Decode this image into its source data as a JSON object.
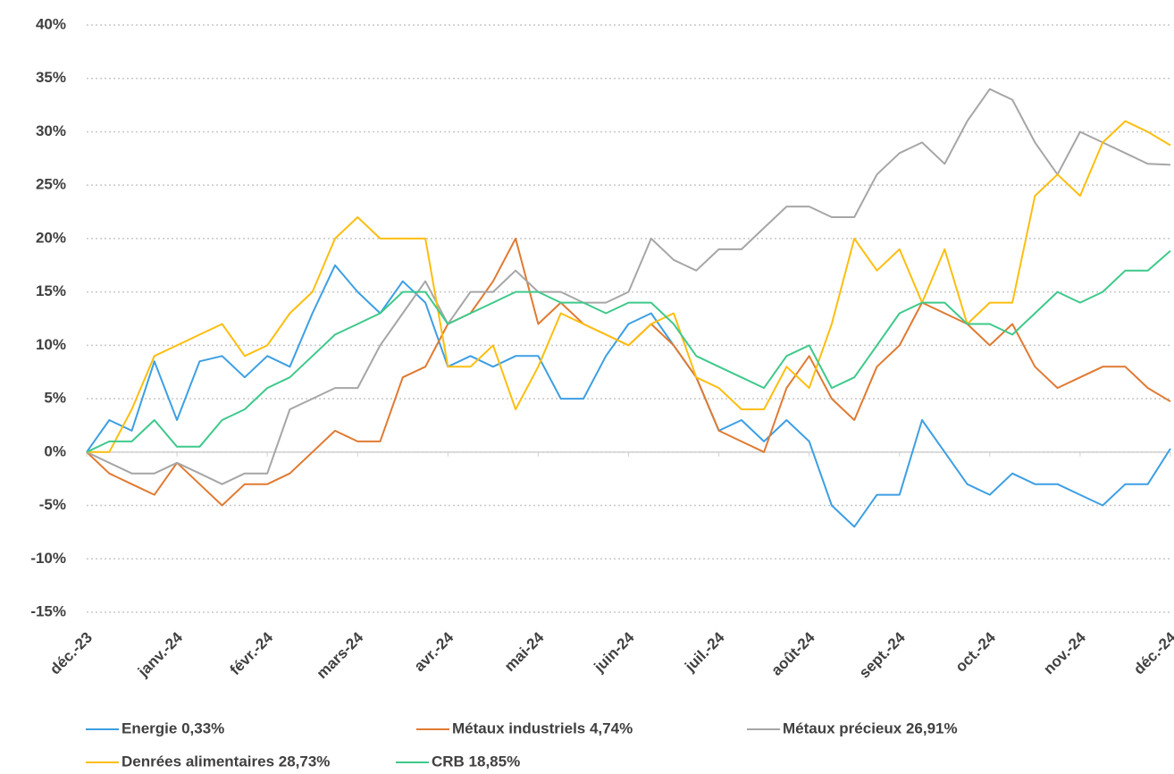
{
  "chart_data": {
    "type": "line",
    "categories": [
      "déc.-23",
      null,
      null,
      null,
      "janv.-24",
      null,
      null,
      null,
      "févr.-24",
      null,
      null,
      null,
      "mars-24",
      null,
      null,
      null,
      "avr.-24",
      null,
      null,
      null,
      "mai-24",
      null,
      null,
      null,
      "juin-24",
      null,
      null,
      null,
      "juil.-24",
      null,
      null,
      null,
      "août-24",
      null,
      null,
      null,
      "sept.-24",
      null,
      null,
      null,
      "oct.-24",
      null,
      null,
      null,
      "nov.-24",
      null,
      null,
      null,
      "déc.-24"
    ],
    "series": [
      {
        "name": "Energie 0,33%",
        "color": "#3d9fe3",
        "values": [
          0,
          3,
          2,
          8.5,
          3,
          8.5,
          9,
          7,
          9,
          8,
          13,
          17.5,
          15,
          13,
          16,
          14,
          8,
          9,
          8,
          9,
          9,
          5,
          5,
          9,
          12,
          13,
          10,
          7,
          2,
          3,
          1,
          3,
          1,
          -5,
          -7,
          -4,
          -4,
          3,
          0,
          -3,
          -4,
          -2,
          -3,
          -3,
          -4,
          -5,
          -3,
          -3,
          0.33
        ]
      },
      {
        "name": "Métaux industriels 4,74%",
        "color": "#e07a32",
        "values": [
          0,
          -2,
          -3,
          -4,
          -1,
          -3,
          -5,
          -3,
          -3,
          -2,
          0,
          2,
          1,
          1,
          7,
          8,
          12,
          13,
          16,
          20,
          12,
          14,
          12,
          11,
          10,
          12,
          10,
          7,
          2,
          1,
          0,
          6,
          9,
          5,
          3,
          8,
          10,
          14,
          13,
          12,
          10,
          12,
          8,
          6,
          7,
          8,
          8,
          6,
          4.74
        ]
      },
      {
        "name": "Métaux précieux 26,91%",
        "color": "#a6a6a6",
        "values": [
          0,
          -1,
          -2,
          -2,
          -1,
          -2,
          -3,
          -2,
          -2,
          4,
          5,
          6,
          6,
          10,
          13,
          16,
          12,
          15,
          15,
          17,
          15,
          15,
          14,
          14,
          15,
          20,
          18,
          17,
          19,
          19,
          21,
          23,
          23,
          22,
          22,
          26,
          28,
          29,
          27,
          31,
          34,
          33,
          29,
          26,
          30,
          29,
          28,
          27,
          26.91
        ]
      },
      {
        "name": "Denrées alimentaires 28,73%",
        "color": "#fdbe10",
        "values": [
          0,
          0,
          4,
          9,
          10,
          11,
          12,
          9,
          10,
          13,
          15,
          20,
          22,
          20,
          20,
          20,
          8,
          8,
          10,
          4,
          8,
          13,
          12,
          11,
          10,
          12,
          13,
          7,
          6,
          4,
          4,
          8,
          6,
          12,
          20,
          17,
          19,
          14,
          19,
          12,
          14,
          14,
          24,
          26,
          24,
          29,
          31,
          30,
          28.73
        ]
      },
      {
        "name": "CRB 18,85%",
        "color": "#3ec98b",
        "values": [
          0,
          1,
          1,
          3,
          0.5,
          0.5,
          3,
          4,
          6,
          7,
          9,
          11,
          12,
          13,
          15,
          15,
          12,
          13,
          14,
          15,
          15,
          14,
          14,
          13,
          14,
          14,
          12,
          9,
          8,
          7,
          6,
          9,
          10,
          6,
          7,
          10,
          13,
          14,
          14,
          12,
          12,
          11,
          13,
          15,
          14,
          15,
          17,
          17,
          18.85
        ]
      }
    ],
    "ylim": [
      -15,
      40
    ],
    "yticks": [
      {
        "value": -15,
        "label": "-15%"
      },
      {
        "value": -10,
        "label": "-10%"
      },
      {
        "value": -5,
        "label": "-5%"
      },
      {
        "value": 0,
        "label": "0%"
      },
      {
        "value": 5,
        "label": "5%"
      },
      {
        "value": 10,
        "label": "10%"
      },
      {
        "value": 15,
        "label": "15%"
      },
      {
        "value": 20,
        "label": "20%"
      },
      {
        "value": 25,
        "label": "25%"
      },
      {
        "value": 30,
        "label": "30%"
      },
      {
        "value": 35,
        "label": "35%"
      },
      {
        "value": 40,
        "label": "40%"
      }
    ],
    "grid": true
  }
}
